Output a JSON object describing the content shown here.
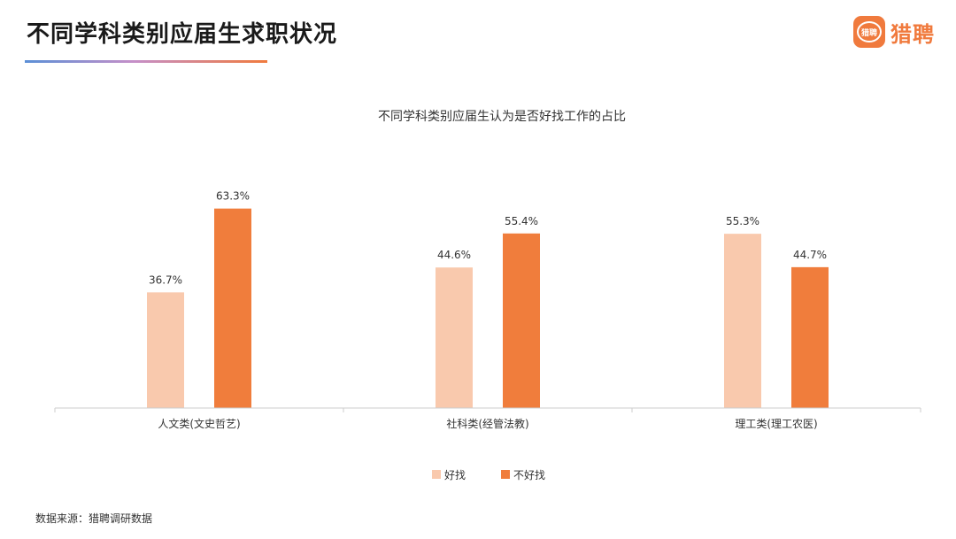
{
  "header": {
    "title": "不同学科类别应届生求职状况",
    "logo_text": "猎聘",
    "logo_mark_text": "猎聘"
  },
  "colors": {
    "easy": "#f9c9ad",
    "hard": "#f07d3c",
    "axis": "#cccccc",
    "accent": "#f07a3d"
  },
  "chart_data": {
    "type": "bar",
    "title": "不同学科类别应届生认为是否好找工作的占比",
    "categories": [
      "人文类(文史哲艺)",
      "社科类(经管法教)",
      "理工类(理工农医)"
    ],
    "series": [
      {
        "name": "好找",
        "values": [
          36.7,
          44.6,
          55.3
        ],
        "labels": [
          "36.7%",
          "44.6%",
          "55.3%"
        ]
      },
      {
        "name": "不好找",
        "values": [
          63.3,
          55.4,
          44.7
        ],
        "labels": [
          "63.3%",
          "55.4%",
          "44.7%"
        ]
      }
    ],
    "ylim": [
      0,
      70
    ],
    "grid": false,
    "legend": "bottom-center"
  },
  "footnote": "数据来源：猎聘调研数据"
}
